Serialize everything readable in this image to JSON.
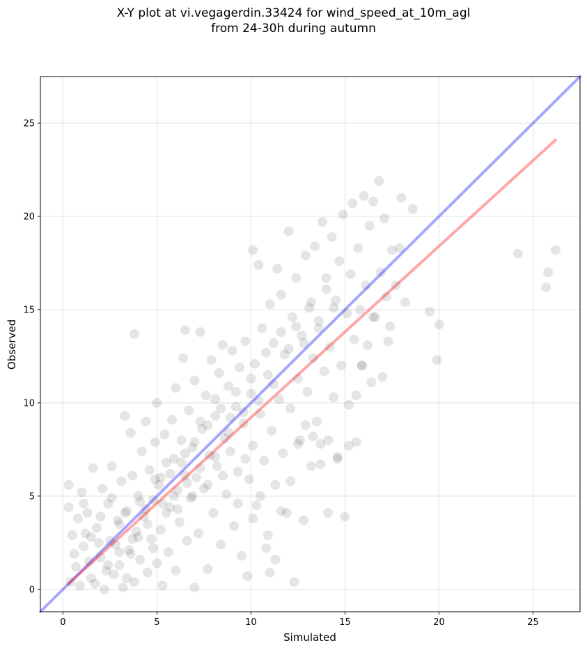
{
  "title_line1": "X-Y plot at vi.vegagerdin.33424 for wind_speed_at_10m_agl",
  "title_line2": "from 24-30h during autumn",
  "chart_data": {
    "type": "scatter",
    "title": "X-Y plot at vi.vegagerdin.33424 for wind_speed_at_10m_agl from 24-30h during autumn",
    "xlabel": "Simulated",
    "ylabel": "Observed",
    "xlim": [
      -1.2,
      27.5
    ],
    "ylim": [
      -1.2,
      27.5
    ],
    "xticks": [
      0,
      5,
      10,
      15,
      20,
      25
    ],
    "yticks": [
      0,
      5,
      10,
      15,
      20,
      25
    ],
    "grid": true,
    "point_color": "#000000",
    "point_opacity": 0.1,
    "lines": [
      {
        "color": "#0000ff",
        "opacity": 0.35,
        "x": [
          -1.2,
          27.5
        ],
        "y": [
          -1.2,
          27.5
        ]
      },
      {
        "color": "#ff0000",
        "opacity": 0.35,
        "x": [
          0.3,
          26.2
        ],
        "y": [
          0.3,
          24.1
        ]
      }
    ],
    "points": [
      [
        0.3,
        4.4
      ],
      [
        0.3,
        5.6
      ],
      [
        0.5,
        2.9
      ],
      [
        0.7,
        1.2
      ],
      [
        0.8,
        3.8
      ],
      [
        1.0,
        5.2
      ],
      [
        1.1,
        2.3
      ],
      [
        1.3,
        4.1
      ],
      [
        1.5,
        0.6
      ],
      [
        1.6,
        6.5
      ],
      [
        1.8,
        3.3
      ],
      [
        2.0,
        1.7
      ],
      [
        2.1,
        5.4
      ],
      [
        2.2,
        0.0
      ],
      [
        2.4,
        4.6
      ],
      [
        2.5,
        2.6
      ],
      [
        2.6,
        6.6
      ],
      [
        2.7,
        0.8
      ],
      [
        2.9,
        3.7
      ],
      [
        3.0,
        1.3
      ],
      [
        3.1,
        5.8
      ],
      [
        3.2,
        0.1
      ],
      [
        3.3,
        9.3
      ],
      [
        3.4,
        4.2
      ],
      [
        3.5,
        2.1
      ],
      [
        3.6,
        8.4
      ],
      [
        3.7,
        6.1
      ],
      [
        3.8,
        0.4
      ],
      [
        3.8,
        13.7
      ],
      [
        3.9,
        3.1
      ],
      [
        4.0,
        5.0
      ],
      [
        4.1,
        1.6
      ],
      [
        4.2,
        7.4
      ],
      [
        4.3,
        3.9
      ],
      [
        4.4,
        9.0
      ],
      [
        4.5,
        0.9
      ],
      [
        4.6,
        6.4
      ],
      [
        4.7,
        2.7
      ],
      [
        4.8,
        4.8
      ],
      [
        4.9,
        7.9
      ],
      [
        5.0,
        1.4
      ],
      [
        5.0,
        10.0
      ],
      [
        5.1,
        5.6
      ],
      [
        5.2,
        3.2
      ],
      [
        5.3,
        0.2
      ],
      [
        5.4,
        8.3
      ],
      [
        5.5,
        6.8
      ],
      [
        5.6,
        2.0
      ],
      [
        5.7,
        4.4
      ],
      [
        5.8,
        9.1
      ],
      [
        5.9,
        7.0
      ],
      [
        6.0,
        1.0
      ],
      [
        6.0,
        10.8
      ],
      [
        6.1,
        5.3
      ],
      [
        6.2,
        3.6
      ],
      [
        6.3,
        8.0
      ],
      [
        6.4,
        12.4
      ],
      [
        6.5,
        6.1
      ],
      [
        6.5,
        13.9
      ],
      [
        6.6,
        2.6
      ],
      [
        6.7,
        9.6
      ],
      [
        6.8,
        4.9
      ],
      [
        6.9,
        7.6
      ],
      [
        7.0,
        0.1
      ],
      [
        7.0,
        11.2
      ],
      [
        7.1,
        6.0
      ],
      [
        7.2,
        3.0
      ],
      [
        7.3,
        13.8
      ],
      [
        7.4,
        8.6
      ],
      [
        7.5,
        5.4
      ],
      [
        7.6,
        10.4
      ],
      [
        7.7,
        1.1
      ],
      [
        7.8,
        7.2
      ],
      [
        7.9,
        12.3
      ],
      [
        8.0,
        4.1
      ],
      [
        8.1,
        9.3
      ],
      [
        8.2,
        6.6
      ],
      [
        8.3,
        11.6
      ],
      [
        8.4,
        2.4
      ],
      [
        8.5,
        13.1
      ],
      [
        8.6,
        8.1
      ],
      [
        8.7,
        5.1
      ],
      [
        8.8,
        10.9
      ],
      [
        8.9,
        7.4
      ],
      [
        9.0,
        12.8
      ],
      [
        9.1,
        3.4
      ],
      [
        9.2,
        9.8
      ],
      [
        9.3,
        6.3
      ],
      [
        9.4,
        11.9
      ],
      [
        9.5,
        1.8
      ],
      [
        9.6,
        8.9
      ],
      [
        9.7,
        13.3
      ],
      [
        9.8,
        0.7
      ],
      [
        9.9,
        5.9
      ],
      [
        10.0,
        10.5
      ],
      [
        10.1,
        7.7
      ],
      [
        10.1,
        18.2
      ],
      [
        10.2,
        12.1
      ],
      [
        10.3,
        4.5
      ],
      [
        10.4,
        17.4
      ],
      [
        10.5,
        9.4
      ],
      [
        10.6,
        14.0
      ],
      [
        10.7,
        6.9
      ],
      [
        10.8,
        2.2
      ],
      [
        10.9,
        11.5
      ],
      [
        11.0,
        15.3
      ],
      [
        11.0,
        0.9
      ],
      [
        11.1,
        8.5
      ],
      [
        11.2,
        13.2
      ],
      [
        11.3,
        5.6
      ],
      [
        11.4,
        17.2
      ],
      [
        11.5,
        10.2
      ],
      [
        11.6,
        15.8
      ],
      [
        11.7,
        7.3
      ],
      [
        11.8,
        12.6
      ],
      [
        11.9,
        4.1
      ],
      [
        12.0,
        19.2
      ],
      [
        12.1,
        9.7
      ],
      [
        12.2,
        14.6
      ],
      [
        12.3,
        0.4
      ],
      [
        12.4,
        16.7
      ],
      [
        12.5,
        11.3
      ],
      [
        12.6,
        8.0
      ],
      [
        12.7,
        13.6
      ],
      [
        12.8,
        3.7
      ],
      [
        12.9,
        17.9
      ],
      [
        13.0,
        10.6
      ],
      [
        13.1,
        15.1
      ],
      [
        13.2,
        6.6
      ],
      [
        13.3,
        12.4
      ],
      [
        13.4,
        18.4
      ],
      [
        13.5,
        9.0
      ],
      [
        13.6,
        14.4
      ],
      [
        13.7,
        7.8
      ],
      [
        13.8,
        19.7
      ],
      [
        13.9,
        11.7
      ],
      [
        14.0,
        16.1
      ],
      [
        14.1,
        4.1
      ],
      [
        14.2,
        13.0
      ],
      [
        14.3,
        18.9
      ],
      [
        14.4,
        10.3
      ],
      [
        14.5,
        15.5
      ],
      [
        14.6,
        7.1
      ],
      [
        14.7,
        17.6
      ],
      [
        14.8,
        12.0
      ],
      [
        14.9,
        20.1
      ],
      [
        15.0,
        3.9
      ],
      [
        15.1,
        14.8
      ],
      [
        15.2,
        9.9
      ],
      [
        15.3,
        16.9
      ],
      [
        15.4,
        20.7
      ],
      [
        15.5,
        13.4
      ],
      [
        15.6,
        7.9
      ],
      [
        15.7,
        18.3
      ],
      [
        15.8,
        15.0
      ],
      [
        15.9,
        12.0
      ],
      [
        16.0,
        21.1
      ],
      [
        16.1,
        16.3
      ],
      [
        16.2,
        13.1
      ],
      [
        16.3,
        19.5
      ],
      [
        16.4,
        11.1
      ],
      [
        16.5,
        20.8
      ],
      [
        16.6,
        14.6
      ],
      [
        16.8,
        21.9
      ],
      [
        16.9,
        17.0
      ],
      [
        17.0,
        11.4
      ],
      [
        17.1,
        19.9
      ],
      [
        17.2,
        15.7
      ],
      [
        17.4,
        14.1
      ],
      [
        17.5,
        18.2
      ],
      [
        17.7,
        16.3
      ],
      [
        17.9,
        18.3
      ],
      [
        18.0,
        21.0
      ],
      [
        18.2,
        15.4
      ],
      [
        18.6,
        20.4
      ],
      [
        19.5,
        14.9
      ],
      [
        19.9,
        12.3
      ],
      [
        20.0,
        14.2
      ],
      [
        24.2,
        18.0
      ],
      [
        25.7,
        16.2
      ],
      [
        25.8,
        17.0
      ],
      [
        26.2,
        18.2
      ],
      [
        0.4,
        0.4
      ],
      [
        0.6,
        1.9
      ],
      [
        0.9,
        0.2
      ],
      [
        1.2,
        3.0
      ],
      [
        1.4,
        1.5
      ],
      [
        1.7,
        0.3
      ],
      [
        1.9,
        2.5
      ],
      [
        2.3,
        1.0
      ],
      [
        2.8,
        2.4
      ],
      [
        3.0,
        3.5
      ],
      [
        3.4,
        0.6
      ],
      [
        3.6,
        1.9
      ],
      [
        4.0,
        2.8
      ],
      [
        4.4,
        4.3
      ],
      [
        4.8,
        2.2
      ],
      [
        5.2,
        6.0
      ],
      [
        5.5,
        4.1
      ],
      [
        5.9,
        5.0
      ],
      [
        6.3,
        6.8
      ],
      [
        6.6,
        5.7
      ],
      [
        7.0,
        7.9
      ],
      [
        7.3,
        6.5
      ],
      [
        7.7,
        8.8
      ],
      [
        8.1,
        7.1
      ],
      [
        8.4,
        9.7
      ],
      [
        8.8,
        8.4
      ],
      [
        9.2,
        10.6
      ],
      [
        9.6,
        9.5
      ],
      [
        10.0,
        11.3
      ],
      [
        10.4,
        10.1
      ],
      [
        10.8,
        12.7
      ],
      [
        11.2,
        11.0
      ],
      [
        11.6,
        13.8
      ],
      [
        12.0,
        12.9
      ],
      [
        12.4,
        14.1
      ],
      [
        12.8,
        13.2
      ],
      [
        13.2,
        15.4
      ],
      [
        13.6,
        14.0
      ],
      [
        14.0,
        16.7
      ],
      [
        14.4,
        15.1
      ],
      [
        1.1,
        4.6
      ],
      [
        1.5,
        2.8
      ],
      [
        2.0,
        3.9
      ],
      [
        2.4,
        1.3
      ],
      [
        2.6,
        4.9
      ],
      [
        3.0,
        2.0
      ],
      [
        3.3,
        4.1
      ],
      [
        3.7,
        2.7
      ],
      [
        4.1,
        4.7
      ],
      [
        4.5,
        3.5
      ],
      [
        4.9,
        5.9
      ],
      [
        5.3,
        4.6
      ],
      [
        5.7,
        6.2
      ],
      [
        6.1,
        4.3
      ],
      [
        6.5,
        7.3
      ],
      [
        6.9,
        5.0
      ],
      [
        7.3,
        9.0
      ],
      [
        7.7,
        5.6
      ],
      [
        8.1,
        10.2
      ],
      [
        8.5,
        6.1
      ],
      [
        8.9,
        9.2
      ],
      [
        9.3,
        4.6
      ],
      [
        9.7,
        7.0
      ],
      [
        10.1,
        3.8
      ],
      [
        10.5,
        5.0
      ],
      [
        10.9,
        2.9
      ],
      [
        11.3,
        1.6
      ],
      [
        11.6,
        4.2
      ],
      [
        12.1,
        5.8
      ],
      [
        12.5,
        7.8
      ],
      [
        12.9,
        8.8
      ],
      [
        13.3,
        8.2
      ],
      [
        13.7,
        6.7
      ],
      [
        14.1,
        8.0
      ],
      [
        14.6,
        7.0
      ],
      [
        15.2,
        7.7
      ],
      [
        15.6,
        10.4
      ],
      [
        15.9,
        12.0
      ],
      [
        16.5,
        14.6
      ],
      [
        17.3,
        13.3
      ]
    ]
  }
}
